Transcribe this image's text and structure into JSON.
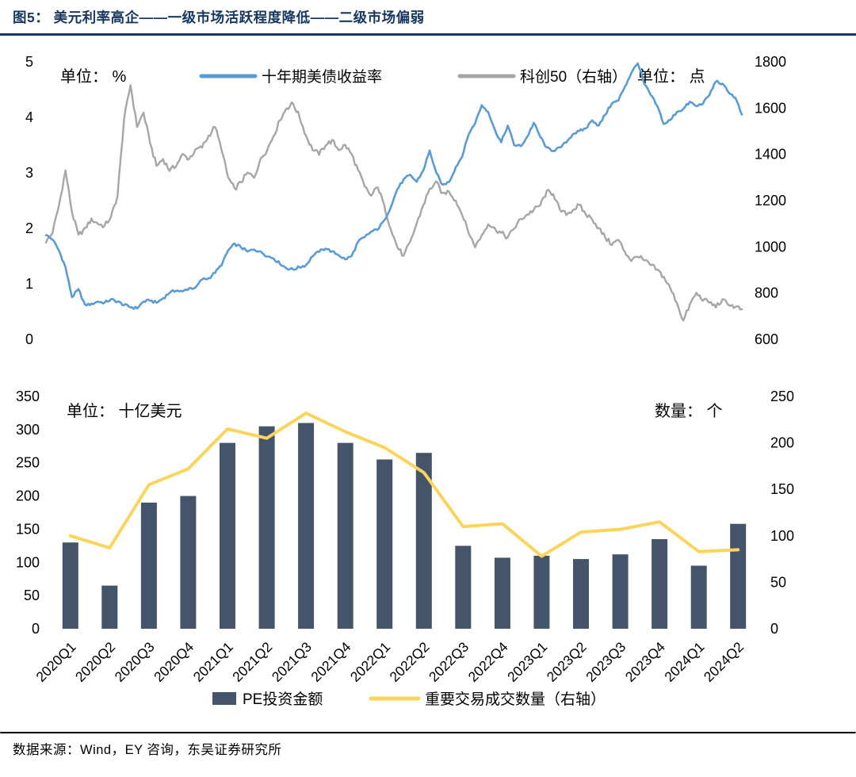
{
  "page": {
    "title": "图5： 美元利率高企——一级市场活跃程度降低——二级市场偏弱",
    "source": "数据来源：Wind，EY 咨询，东吴证券研究所"
  },
  "colors": {
    "title_navy": "#17375E",
    "us10y_blue": "#5B9BD5",
    "star50_gray": "#A6A6A6",
    "pe_bar_navy": "#44546A",
    "deal_line_yellow": "#FBD45C"
  },
  "chart_data": [
    {
      "type": "line",
      "unit_left": "单位： %",
      "unit_right": "单位： 点",
      "legend": [
        "十年期美债收益率",
        "科创50（右轴）"
      ],
      "y_left": {
        "min": 0,
        "max": 5,
        "step": 1
      },
      "y_right": {
        "min": 600,
        "max": 1800,
        "step": 200
      },
      "x_range_note": "2020-01 to 2024-06, semi-monthly samples",
      "series": [
        {
          "name": "科创50（右轴）",
          "axis": "right",
          "color": "#A6A6A6",
          "values": [
            1020,
            1060,
            1180,
            1330,
            1150,
            1050,
            1080,
            1120,
            1100,
            1090,
            1130,
            1220,
            1550,
            1700,
            1520,
            1580,
            1450,
            1350,
            1380,
            1330,
            1350,
            1400,
            1380,
            1420,
            1430,
            1480,
            1520,
            1420,
            1300,
            1250,
            1280,
            1320,
            1300,
            1380,
            1420,
            1480,
            1550,
            1600,
            1620,
            1560,
            1480,
            1420,
            1400,
            1440,
            1460,
            1420,
            1440,
            1400,
            1330,
            1260,
            1220,
            1260,
            1180,
            1080,
            1000,
            960,
            1020,
            1100,
            1180,
            1250,
            1280,
            1230,
            1240,
            1200,
            1140,
            1060,
            1000,
            1050,
            1100,
            1080,
            1060,
            1040,
            1080,
            1120,
            1140,
            1160,
            1180,
            1240,
            1230,
            1160,
            1140,
            1160,
            1180,
            1140,
            1120,
            1080,
            1040,
            1010,
            1030,
            980,
            940,
            960,
            940,
            920,
            900,
            870,
            820,
            760,
            680,
            750,
            800,
            770,
            760,
            740,
            770,
            750,
            740,
            730
          ]
        },
        {
          "name": "十年期美债收益率",
          "axis": "left",
          "color": "#5B9BD5",
          "values": [
            1.88,
            1.8,
            1.6,
            1.3,
            0.76,
            0.9,
            0.62,
            0.64,
            0.68,
            0.66,
            0.72,
            0.68,
            0.62,
            0.58,
            0.56,
            0.68,
            0.7,
            0.66,
            0.74,
            0.84,
            0.88,
            0.86,
            0.92,
            0.93,
            1.08,
            1.1,
            1.2,
            1.34,
            1.6,
            1.72,
            1.66,
            1.58,
            1.62,
            1.58,
            1.5,
            1.46,
            1.36,
            1.28,
            1.26,
            1.3,
            1.34,
            1.5,
            1.58,
            1.64,
            1.58,
            1.52,
            1.44,
            1.5,
            1.76,
            1.84,
            1.94,
            1.98,
            2.14,
            2.38,
            2.7,
            2.88,
            2.96,
            2.84,
            3.04,
            3.4,
            3.0,
            2.78,
            2.84,
            3.1,
            3.3,
            3.7,
            3.9,
            4.22,
            4.1,
            3.78,
            3.55,
            3.85,
            3.5,
            3.48,
            3.65,
            3.9,
            3.65,
            3.45,
            3.4,
            3.45,
            3.55,
            3.7,
            3.75,
            3.8,
            3.95,
            3.85,
            4.05,
            4.25,
            4.3,
            4.55,
            4.8,
            4.98,
            4.6,
            4.4,
            4.2,
            3.88,
            3.95,
            4.1,
            4.15,
            4.28,
            4.2,
            4.25,
            4.4,
            4.65,
            4.6,
            4.45,
            4.35,
            4.05
          ]
        }
      ]
    },
    {
      "type": "bar",
      "unit_left": "单位： 十亿美元",
      "unit_right": "数量： 个",
      "categories": [
        "2020Q1",
        "2020Q2",
        "2020Q3",
        "2020Q4",
        "2021Q1",
        "2021Q2",
        "2021Q3",
        "2021Q4",
        "2022Q1",
        "2022Q2",
        "2022Q3",
        "2022Q4",
        "2023Q1",
        "2023Q2",
        "2023Q3",
        "2023Q4",
        "2024Q1",
        "2024Q2"
      ],
      "y_left": {
        "min": 0,
        "max": 350,
        "step": 50
      },
      "y_right": {
        "min": 0,
        "max": 250,
        "step": 50
      },
      "bar_series": {
        "name": "PE投资金额",
        "axis": "left",
        "color": "#44546A",
        "values": [
          130,
          65,
          190,
          200,
          280,
          305,
          310,
          280,
          255,
          265,
          125,
          107,
          110,
          105,
          112,
          135,
          95,
          158
        ]
      },
      "line_series": {
        "name": "重要交易成交数量（右轴）",
        "axis": "right",
        "color": "#FBD45C",
        "values": [
          100,
          87,
          155,
          172,
          215,
          205,
          232,
          212,
          195,
          168,
          110,
          113,
          78,
          104,
          107,
          115,
          83,
          85
        ]
      }
    }
  ]
}
